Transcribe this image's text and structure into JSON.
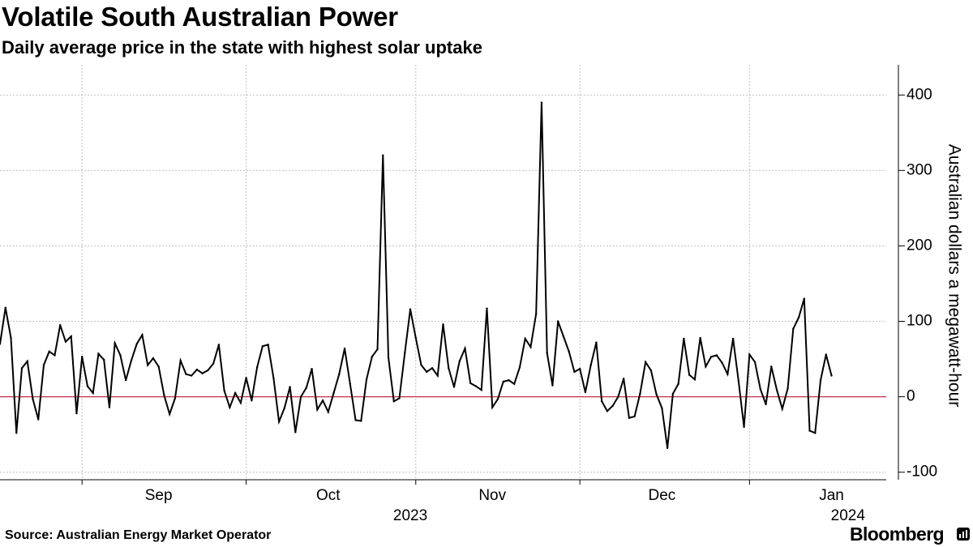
{
  "header": {
    "title": "Volatile South Australian Power",
    "subtitle": "Daily average price in the state with highest solar uptake"
  },
  "footer": {
    "source": "Source: Australian Energy Market Operator",
    "brand": "Bloomberg"
  },
  "colors": {
    "line": "#000000",
    "zero_line": "#c0304a",
    "grid": "#bfbfbf",
    "axis": "#000000"
  },
  "chart_data": {
    "type": "line",
    "title": "Volatile South Australian Power",
    "subtitle": "Daily average price in the state with highest solar uptake",
    "ylabel": "Australian dollars a megawatt-hour",
    "xlabel": "",
    "ylim": [
      -110,
      440
    ],
    "yticks": [
      -100,
      0,
      100,
      200,
      300,
      400
    ],
    "ytick_labels": [
      "-100",
      "0",
      "100",
      "200",
      "300",
      "400"
    ],
    "x_start_date": "2023-08-17",
    "x_end_date": "2024-01-26",
    "month_labels": [
      {
        "label": "Sep",
        "date": "2023-09-15"
      },
      {
        "label": "Oct",
        "date": "2023-10-16"
      },
      {
        "label": "Nov",
        "date": "2023-11-15"
      },
      {
        "label": "Dec",
        "date": "2023-12-16"
      },
      {
        "label": "Jan",
        "date": "2024-01-16"
      }
    ],
    "month_boundaries": [
      "2023-09-01",
      "2023-10-01",
      "2023-11-01",
      "2023-12-01",
      "2024-01-01"
    ],
    "year_labels": [
      {
        "label": "2023",
        "date": "2023-10-31"
      },
      {
        "label": "2024",
        "date": "2024-01-19"
      }
    ],
    "grid": true,
    "series": [
      {
        "name": "Daily average price",
        "start_date": "2023-08-17",
        "values": [
          70,
          118,
          78,
          -48,
          38,
          47,
          -3,
          -30,
          42,
          60,
          55,
          95,
          73,
          80,
          -22,
          53,
          14,
          5,
          57,
          49,
          -14,
          71,
          55,
          22,
          48,
          70,
          82,
          42,
          51,
          40,
          2,
          -23,
          -2,
          48,
          30,
          28,
          36,
          31,
          35,
          44,
          69,
          8,
          -14,
          5,
          -8,
          25,
          -5,
          39,
          67,
          69,
          25,
          -33,
          -15,
          13,
          -47,
          0,
          12,
          37,
          -17,
          -5,
          -20,
          5,
          30,
          64,
          17,
          -31,
          -32,
          23,
          53,
          63,
          320,
          52,
          -6,
          -2,
          58,
          116,
          78,
          42,
          33,
          38,
          28,
          96,
          38,
          13,
          47,
          64,
          18,
          14,
          9,
          117,
          -14,
          -3,
          20,
          22,
          17,
          39,
          77,
          66,
          110,
          390,
          58,
          15,
          100,
          80,
          60,
          33,
          37,
          6,
          42,
          72,
          -6,
          -19,
          -12,
          0,
          24,
          -28,
          -26,
          4,
          46,
          35,
          3,
          -15,
          -68,
          4,
          17,
          77,
          29,
          23,
          78,
          40,
          53,
          55,
          45,
          30,
          77,
          21,
          -40,
          56,
          46,
          10,
          -10,
          40,
          9,
          -16,
          11,
          90,
          105,
          130,
          -45,
          -48,
          22,
          56,
          28
        ]
      }
    ]
  }
}
